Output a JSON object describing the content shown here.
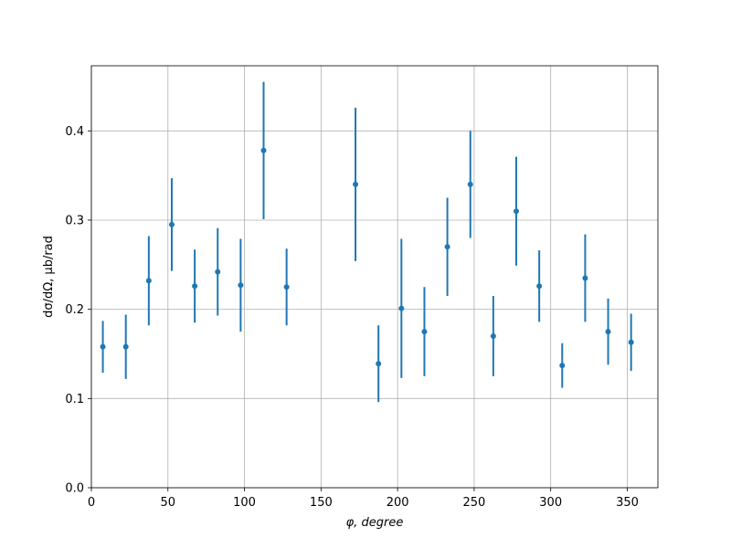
{
  "chart_data": {
    "type": "errorbar",
    "xlabel": "φ, degree",
    "ylabel": "dσ/dΩ, μb/rad",
    "x": [
      7.5,
      22.5,
      37.5,
      52.5,
      67.5,
      82.5,
      97.5,
      112.5,
      127.5,
      172.5,
      187.5,
      202.5,
      217.5,
      232.5,
      247.5,
      262.5,
      277.5,
      292.5,
      307.5,
      322.5,
      337.5,
      352.5
    ],
    "values": [
      0.158,
      0.158,
      0.232,
      0.295,
      0.226,
      0.242,
      0.227,
      0.378,
      0.225,
      0.34,
      0.139,
      0.201,
      0.175,
      0.27,
      0.34,
      0.17,
      0.31,
      0.226,
      0.137,
      0.235,
      0.175,
      0.163
    ],
    "errors": [
      0.029,
      0.036,
      0.05,
      0.052,
      0.041,
      0.049,
      0.052,
      0.077,
      0.043,
      0.086,
      0.043,
      0.078,
      0.05,
      0.055,
      0.06,
      0.045,
      0.061,
      0.04,
      0.025,
      0.049,
      0.037,
      0.032
    ],
    "color": "#1f77b4",
    "xlim": [
      0,
      370
    ],
    "ylim": [
      0,
      0.473
    ],
    "xticks": [
      0,
      50,
      100,
      150,
      200,
      250,
      300,
      350
    ],
    "yticks": [
      {
        "value": 0,
        "label": "0.0"
      },
      0.1,
      0.2,
      0.3,
      0.4
    ],
    "grid": true
  }
}
